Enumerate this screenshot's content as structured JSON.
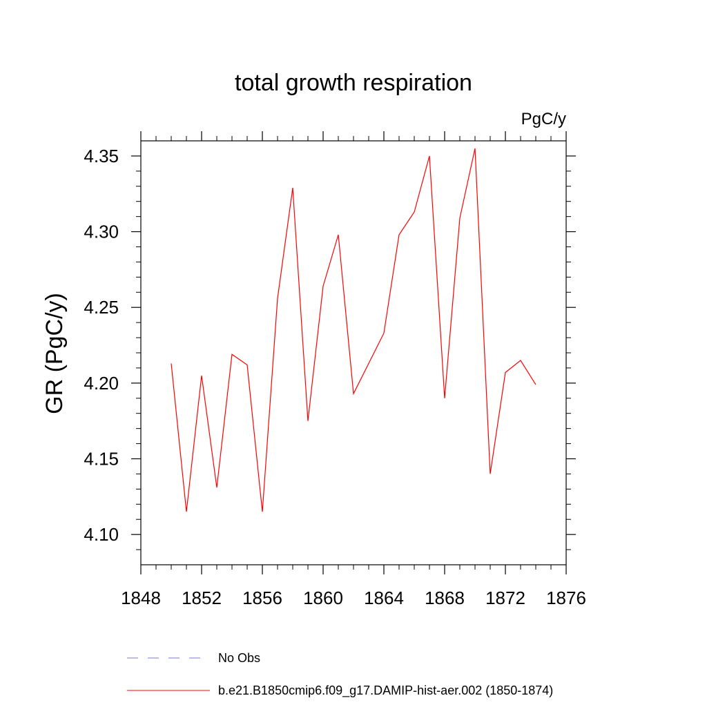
{
  "chart_data": {
    "type": "line",
    "title": "total growth respiration",
    "units_label": "PgC/y",
    "xlabel": "",
    "ylabel": "GR  (PgC/y)",
    "xlim": [
      1848,
      1876
    ],
    "ylim": [
      4.08,
      4.36
    ],
    "x_ticks": [
      1848,
      1852,
      1856,
      1860,
      1864,
      1868,
      1872,
      1876
    ],
    "y_ticks": [
      4.1,
      4.15,
      4.2,
      4.25,
      4.3,
      4.35
    ],
    "y_tick_labels": [
      "4.10",
      "4.15",
      "4.20",
      "4.25",
      "4.30",
      "4.35"
    ],
    "grid": false,
    "legend_position": "bottom",
    "legend": [
      {
        "label": "No Obs",
        "color": "#7777cc",
        "style": "dashed"
      },
      {
        "label": "b.e21.B1850cmip6.f09_g17.DAMIP-hist-aer.002 (1850-1874)",
        "color": "#ff0000",
        "style": "solid"
      }
    ],
    "series": [
      {
        "name": "b.e21.B1850cmip6.f09_g17.DAMIP-hist-aer.002 (1850-1874)",
        "color": "#ff0000",
        "x": [
          1850,
          1851,
          1852,
          1853,
          1854,
          1855,
          1856,
          1857,
          1858,
          1859,
          1860,
          1861,
          1862,
          1863,
          1864,
          1865,
          1866,
          1867,
          1868,
          1869,
          1870,
          1871,
          1872,
          1873,
          1874
        ],
        "y": [
          4.213,
          4.115,
          4.205,
          4.131,
          4.219,
          4.212,
          4.115,
          4.256,
          4.329,
          4.175,
          4.264,
          4.298,
          4.193,
          4.213,
          4.233,
          4.298,
          4.313,
          4.35,
          4.19,
          4.309,
          4.355,
          4.14,
          4.207,
          4.215,
          4.199
        ]
      }
    ]
  }
}
